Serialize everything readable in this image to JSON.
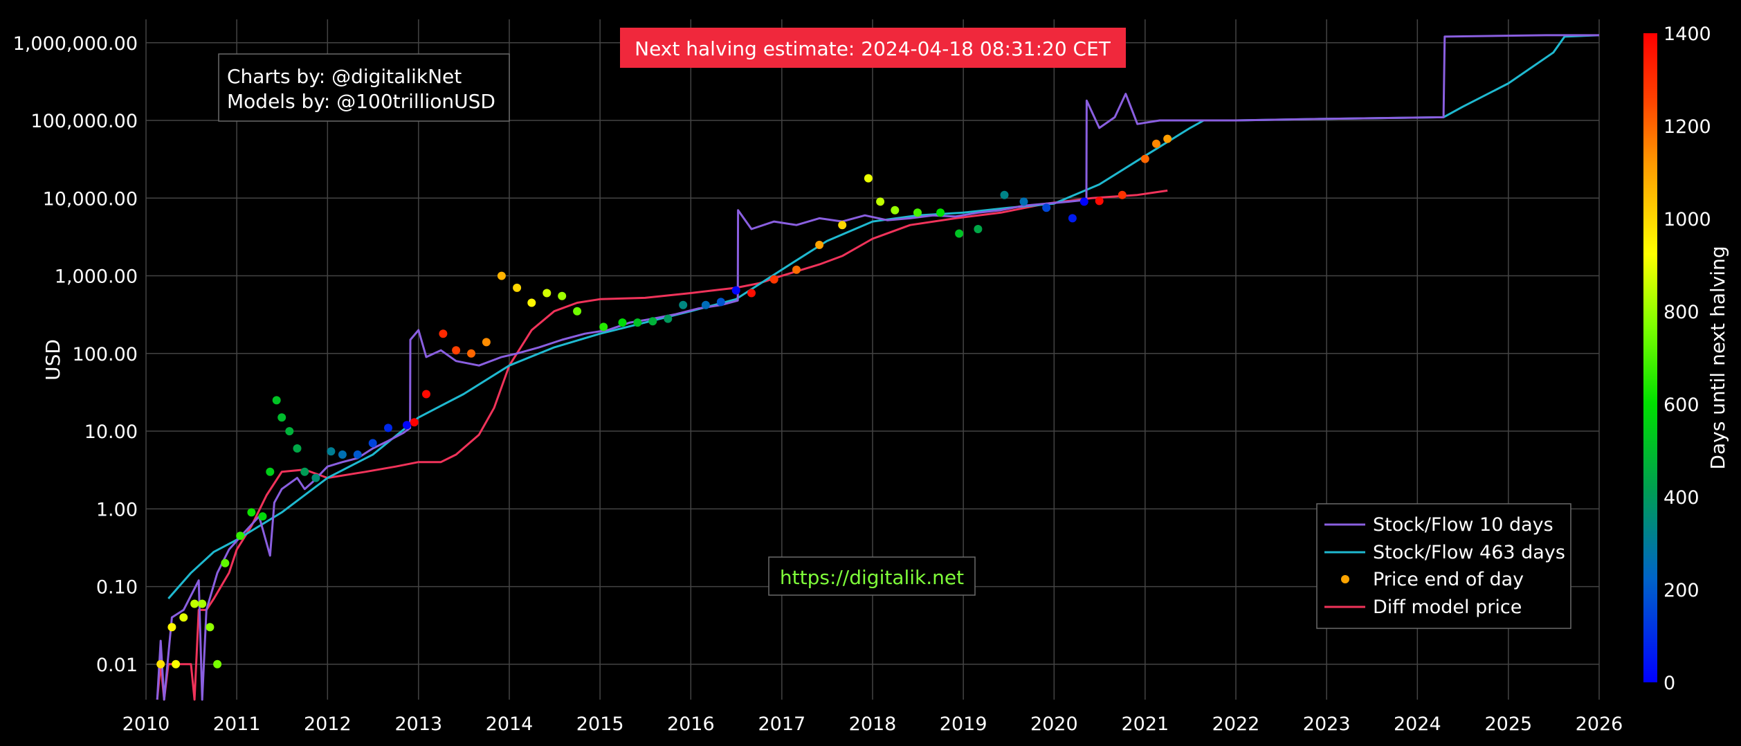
{
  "annotations": {
    "halving_banner": "Next halving estimate: 2024-04-18 08:31:20 CET",
    "credits_line1": "Charts by: @digitalikNet",
    "credits_line2": "Models by: @100trillionUSD",
    "website": "https://digitalik.net"
  },
  "colors": {
    "background": "#000000",
    "grid": "#444444",
    "stock_flow_10": "#8a5fe0",
    "stock_flow_463": "#1fb9d0",
    "price": "#ffa500",
    "diff_model": "#f0335a",
    "banner_bg": "#f0283c",
    "website_text": "#7fff3a"
  },
  "chart_data": {
    "type": "line",
    "x_axis": {
      "type": "date",
      "range": [
        "2010-01-01",
        "2026-01-01"
      ],
      "tick_labels": [
        "2010",
        "2011",
        "2012",
        "2013",
        "2014",
        "2015",
        "2016",
        "2017",
        "2018",
        "2019",
        "2020",
        "2021",
        "2022",
        "2023",
        "2024",
        "2025",
        "2026"
      ]
    },
    "y_axis": {
      "label": "USD",
      "scale": "log",
      "range": [
        0.0035,
        2000000
      ],
      "tick_values": [
        0.01,
        0.1,
        1,
        10,
        100,
        1000,
        10000,
        100000,
        1000000
      ],
      "tick_labels": [
        "0.01",
        "0.10",
        "1.00",
        "10.00",
        "100.00",
        "1,000.00",
        "10,000.00",
        "100,000.00",
        "1,000,000.00"
      ]
    },
    "colorbar": {
      "label": "Days until next halving",
      "range": [
        0,
        1400
      ],
      "tick_values": [
        0,
        200,
        400,
        600,
        800,
        1000,
        1200,
        1400
      ],
      "tick_labels": [
        "0",
        "200",
        "400",
        "600",
        "800",
        "1000",
        "1200",
        "1400"
      ]
    },
    "grid": true,
    "legend_position": "bottom-right",
    "series": [
      {
        "name": "Stock/Flow 10 days",
        "kind": "line",
        "points": [
          [
            "2010-02-15",
            0.003
          ],
          [
            "2010-03-01",
            0.02
          ],
          [
            "2010-03-15",
            0.003
          ],
          [
            "2010-04-15",
            0.04
          ],
          [
            "2010-06-01",
            0.05
          ],
          [
            "2010-08-01",
            0.12
          ],
          [
            "2010-08-15",
            0.003
          ],
          [
            "2010-09-01",
            0.05
          ],
          [
            "2010-10-15",
            0.15
          ],
          [
            "2010-12-01",
            0.3
          ],
          [
            "2011-02-01",
            0.5
          ],
          [
            "2011-04-01",
            0.8
          ],
          [
            "2011-05-15",
            0.25
          ],
          [
            "2011-06-01",
            1.2
          ],
          [
            "2011-07-01",
            1.8
          ],
          [
            "2011-09-01",
            2.5
          ],
          [
            "2011-10-01",
            1.8
          ],
          [
            "2011-11-01",
            2.2
          ],
          [
            "2012-01-01",
            3.5
          ],
          [
            "2012-03-01",
            4
          ],
          [
            "2012-05-01",
            4.5
          ],
          [
            "2012-07-01",
            6
          ],
          [
            "2012-09-01",
            7.5
          ],
          [
            "2012-11-01",
            9.5
          ],
          [
            "2012-11-28",
            11
          ],
          [
            "2012-11-29",
            150
          ],
          [
            "2013-01-01",
            200
          ],
          [
            "2013-02-01",
            90
          ],
          [
            "2013-04-01",
            110
          ],
          [
            "2013-06-01",
            80
          ],
          [
            "2013-09-01",
            70
          ],
          [
            "2013-12-01",
            90
          ],
          [
            "2014-02-01",
            100
          ],
          [
            "2014-05-01",
            120
          ],
          [
            "2014-08-01",
            150
          ],
          [
            "2014-11-01",
            180
          ],
          [
            "2015-02-01",
            200
          ],
          [
            "2015-05-01",
            250
          ],
          [
            "2015-08-01",
            280
          ],
          [
            "2015-11-01",
            320
          ],
          [
            "2016-02-01",
            380
          ],
          [
            "2016-05-01",
            420
          ],
          [
            "2016-07-08",
            480
          ],
          [
            "2016-07-09",
            7000
          ],
          [
            "2016-09-01",
            4000
          ],
          [
            "2016-12-01",
            5000
          ],
          [
            "2017-03-01",
            4500
          ],
          [
            "2017-06-01",
            5500
          ],
          [
            "2017-09-01",
            5000
          ],
          [
            "2017-12-01",
            6000
          ],
          [
            "2018-03-01",
            5200
          ],
          [
            "2018-06-01",
            5500
          ],
          [
            "2018-09-01",
            6000
          ],
          [
            "2018-12-01",
            5800
          ],
          [
            "2019-03-01",
            6500
          ],
          [
            "2019-06-01",
            7000
          ],
          [
            "2019-09-01",
            8000
          ],
          [
            "2019-12-01",
            8500
          ],
          [
            "2020-03-01",
            9000
          ],
          [
            "2020-05-10",
            9500
          ],
          [
            "2020-05-11",
            180000
          ],
          [
            "2020-07-01",
            80000
          ],
          [
            "2020-09-01",
            110000
          ],
          [
            "2020-10-15",
            220000
          ],
          [
            "2020-12-01",
            90000
          ],
          [
            "2021-03-01",
            100000
          ],
          [
            "2021-09-01",
            100000
          ],
          [
            "2022-01-01",
            100000
          ],
          [
            "2023-01-01",
            105000
          ],
          [
            "2024-04-15",
            110000
          ],
          [
            "2024-04-20",
            1200000
          ],
          [
            "2025-06-01",
            1250000
          ],
          [
            "2026-01-01",
            1250000
          ]
        ]
      },
      {
        "name": "Stock/Flow 463 days",
        "kind": "line",
        "points": [
          [
            "2010-04-01",
            0.07
          ],
          [
            "2010-07-01",
            0.15
          ],
          [
            "2010-10-01",
            0.28
          ],
          [
            "2011-01-01",
            0.4
          ],
          [
            "2011-07-01",
            0.9
          ],
          [
            "2012-01-01",
            2.5
          ],
          [
            "2012-07-01",
            5
          ],
          [
            "2013-01-01",
            15
          ],
          [
            "2013-07-01",
            30
          ],
          [
            "2014-01-01",
            70
          ],
          [
            "2014-07-01",
            120
          ],
          [
            "2015-01-01",
            180
          ],
          [
            "2015-07-01",
            250
          ],
          [
            "2016-01-01",
            350
          ],
          [
            "2016-07-01",
            500
          ],
          [
            "2017-01-01",
            1200
          ],
          [
            "2017-07-01",
            2800
          ],
          [
            "2018-01-01",
            5000
          ],
          [
            "2018-07-01",
            6000
          ],
          [
            "2019-01-01",
            6500
          ],
          [
            "2019-07-01",
            7500
          ],
          [
            "2020-01-01",
            8500
          ],
          [
            "2020-07-01",
            15000
          ],
          [
            "2021-01-01",
            35000
          ],
          [
            "2021-07-01",
            80000
          ],
          [
            "2021-08-25",
            100000
          ],
          [
            "2022-01-01",
            100000
          ],
          [
            "2023-01-01",
            105000
          ],
          [
            "2024-04-15",
            110000
          ],
          [
            "2024-07-01",
            150000
          ],
          [
            "2025-01-01",
            300000
          ],
          [
            "2025-07-01",
            750000
          ],
          [
            "2025-08-15",
            1200000
          ],
          [
            "2026-01-01",
            1250000
          ]
        ]
      },
      {
        "name": "Diff model price",
        "kind": "line",
        "points": [
          [
            "2010-02-15",
            0.003
          ],
          [
            "2010-03-01",
            0.01
          ],
          [
            "2010-03-15",
            0.003
          ],
          [
            "2010-04-01",
            0.01
          ],
          [
            "2010-07-01",
            0.01
          ],
          [
            "2010-07-15",
            0.003
          ],
          [
            "2010-08-01",
            0.05
          ],
          [
            "2010-09-01",
            0.05
          ],
          [
            "2010-10-01",
            0.07
          ],
          [
            "2010-12-01",
            0.15
          ],
          [
            "2011-01-01",
            0.3
          ],
          [
            "2011-03-01",
            0.6
          ],
          [
            "2011-05-01",
            1.5
          ],
          [
            "2011-07-01",
            3
          ],
          [
            "2011-10-01",
            3.2
          ],
          [
            "2012-01-01",
            2.5
          ],
          [
            "2012-06-01",
            3
          ],
          [
            "2012-10-01",
            3.5
          ],
          [
            "2013-01-01",
            4
          ],
          [
            "2013-04-01",
            4
          ],
          [
            "2013-06-01",
            5
          ],
          [
            "2013-09-01",
            9
          ],
          [
            "2013-11-01",
            20
          ],
          [
            "2014-01-01",
            70
          ],
          [
            "2014-04-01",
            200
          ],
          [
            "2014-07-01",
            350
          ],
          [
            "2014-10-01",
            450
          ],
          [
            "2015-01-01",
            500
          ],
          [
            "2015-07-01",
            520
          ],
          [
            "2016-01-01",
            600
          ],
          [
            "2016-04-01",
            650
          ],
          [
            "2016-07-01",
            700
          ],
          [
            "2016-10-01",
            800
          ],
          [
            "2017-01-01",
            1000
          ],
          [
            "2017-06-01",
            1400
          ],
          [
            "2017-09-01",
            1800
          ],
          [
            "2018-01-01",
            3000
          ],
          [
            "2018-06-01",
            4500
          ],
          [
            "2018-12-01",
            5500
          ],
          [
            "2019-06-01",
            6500
          ],
          [
            "2019-12-01",
            8500
          ],
          [
            "2020-06-01",
            10000
          ],
          [
            "2020-12-01",
            11000
          ],
          [
            "2021-04-01",
            12500
          ]
        ]
      },
      {
        "name": "Price end of day",
        "kind": "scatter",
        "color_by": "days_until_next_halving",
        "points": [
          [
            "2010-03-01",
            0.01,
            980
          ],
          [
            "2010-04-15",
            0.03,
            940
          ],
          [
            "2010-05-01",
            0.01,
            920
          ],
          [
            "2010-06-01",
            0.04,
            890
          ],
          [
            "2010-07-15",
            0.06,
            850
          ],
          [
            "2010-08-15",
            0.06,
            820
          ],
          [
            "2010-09-15",
            0.03,
            790
          ],
          [
            "2010-10-15",
            0.01,
            760
          ],
          [
            "2010-11-15",
            0.2,
            730
          ],
          [
            "2011-01-15",
            0.45,
            670
          ],
          [
            "2011-03-01",
            0.9,
            620
          ],
          [
            "2011-04-15",
            0.8,
            580
          ],
          [
            "2011-05-15",
            3,
            550
          ],
          [
            "2011-06-10",
            25,
            520
          ],
          [
            "2011-07-01",
            15,
            500
          ],
          [
            "2011-08-01",
            10,
            470
          ],
          [
            "2011-09-01",
            6,
            440
          ],
          [
            "2011-10-01",
            3,
            410
          ],
          [
            "2011-11-15",
            2.5,
            360
          ],
          [
            "2012-01-15",
            5.5,
            310
          ],
          [
            "2012-03-01",
            5,
            260
          ],
          [
            "2012-05-01",
            5,
            200
          ],
          [
            "2012-07-01",
            7,
            150
          ],
          [
            "2012-09-01",
            11,
            90
          ],
          [
            "2012-11-15",
            12,
            10
          ],
          [
            "2012-12-15",
            13,
            1420
          ],
          [
            "2013-02-01",
            30,
            1380
          ],
          [
            "2013-04-10",
            180,
            1310
          ],
          [
            "2013-06-01",
            110,
            1260
          ],
          [
            "2013-08-01",
            100,
            1200
          ],
          [
            "2013-10-01",
            140,
            1140
          ],
          [
            "2013-12-01",
            1000,
            1070
          ],
          [
            "2014-02-01",
            700,
            1000
          ],
          [
            "2014-04-01",
            450,
            940
          ],
          [
            "2014-06-01",
            600,
            870
          ],
          [
            "2014-08-01",
            550,
            810
          ],
          [
            "2014-10-01",
            350,
            750
          ],
          [
            "2015-01-15",
            220,
            650
          ],
          [
            "2015-04-01",
            250,
            590
          ],
          [
            "2015-06-01",
            250,
            520
          ],
          [
            "2015-08-01",
            260,
            470
          ],
          [
            "2015-10-01",
            280,
            400
          ],
          [
            "2015-12-01",
            420,
            340
          ],
          [
            "2016-03-01",
            420,
            250
          ],
          [
            "2016-05-01",
            460,
            190
          ],
          [
            "2016-07-01",
            650,
            10
          ],
          [
            "2016-09-01",
            600,
            1370
          ],
          [
            "2016-12-01",
            900,
            1280
          ],
          [
            "2017-03-01",
            1200,
            1190
          ],
          [
            "2017-06-01",
            2500,
            1100
          ],
          [
            "2017-09-01",
            4500,
            1000
          ],
          [
            "2017-12-15",
            18000,
            900
          ],
          [
            "2018-02-01",
            9000,
            850
          ],
          [
            "2018-04-01",
            7000,
            800
          ],
          [
            "2018-07-01",
            6500,
            700
          ],
          [
            "2018-10-01",
            6500,
            600
          ],
          [
            "2018-12-15",
            3500,
            520
          ],
          [
            "2019-03-01",
            4000,
            440
          ],
          [
            "2019-06-15",
            11000,
            330
          ],
          [
            "2019-09-01",
            9000,
            260
          ],
          [
            "2019-12-01",
            7500,
            160
          ],
          [
            "2020-03-15",
            5500,
            60
          ],
          [
            "2020-05-01",
            9000,
            5
          ],
          [
            "2020-07-01",
            9200,
            1380
          ],
          [
            "2020-10-01",
            11000,
            1290
          ],
          [
            "2021-01-01",
            32000,
            1200
          ],
          [
            "2021-02-15",
            50000,
            1150
          ],
          [
            "2021-04-01",
            58000,
            1110
          ]
        ]
      }
    ]
  }
}
